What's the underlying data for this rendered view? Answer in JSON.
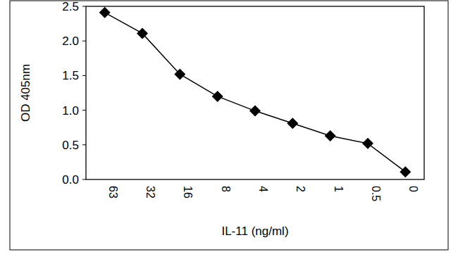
{
  "chart_data": {
    "type": "line",
    "x_label": "IL-11 (ng/ml)",
    "y_label": "OD 405nm",
    "categories": [
      "63",
      "32",
      "16",
      "8",
      "4",
      "2",
      "1",
      "0.5",
      "0"
    ],
    "values": [
      2.41,
      2.11,
      1.52,
      1.2,
      0.99,
      0.81,
      0.63,
      0.52,
      0.11
    ],
    "color": "#000000",
    "marker": "diamond",
    "line_style": "solid",
    "ylim": [
      0,
      2.5
    ],
    "yticks": [
      {
        "value": 0,
        "label": "0.0"
      },
      0.5,
      {
        "value": 1,
        "label": "1.0"
      },
      1.5,
      {
        "value": 2,
        "label": "2.0"
      },
      2.5
    ],
    "grid": false
  }
}
